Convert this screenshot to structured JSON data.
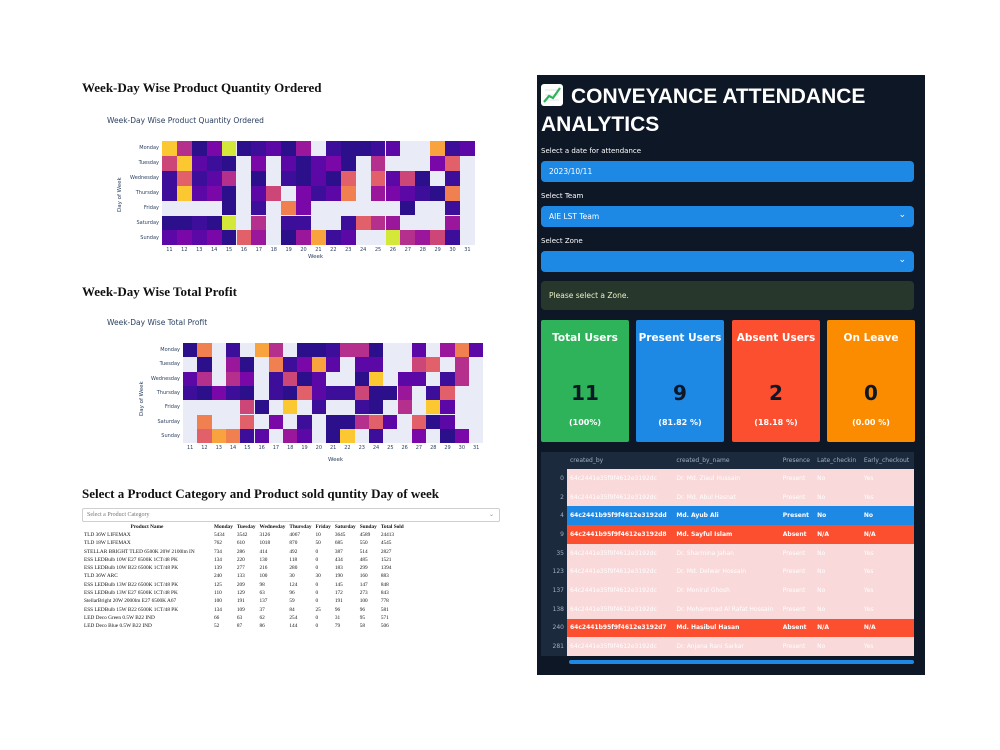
{
  "left": {
    "heatmap1": {
      "heading": "Week-Day Wise Product Quantity Ordered",
      "title": "Week-Day Wise Product Quantity Ordered",
      "days": [
        "Monday",
        "Tuesday",
        "Wednesday",
        "Thursday",
        "Friday",
        "Saturday",
        "Sunday"
      ],
      "weeks": [
        "11",
        "12",
        "13",
        "14",
        "15",
        "16",
        "17",
        "18",
        "19",
        "20",
        "21",
        "22",
        "23",
        "24",
        "25",
        "26",
        "27",
        "28",
        "29",
        "30",
        "31"
      ],
      "xlabel": "Week",
      "ylabel": "Day of Week"
    },
    "heatmap2": {
      "heading": "Week-Day Wise Total Profit",
      "title": "Week-Day Wise Total Profit",
      "days": [
        "Monday",
        "Tuesday",
        "Wednesday",
        "Thursday",
        "Friday",
        "Saturday",
        "Sunday"
      ],
      "weeks": [
        "11",
        "12",
        "13",
        "14",
        "15",
        "16",
        "17",
        "18",
        "19",
        "20",
        "21",
        "22",
        "23",
        "24",
        "25",
        "26",
        "27",
        "28",
        "29",
        "30",
        "31"
      ],
      "xlabel": "Week",
      "ylabel": "Day of Week"
    },
    "product_section": {
      "heading": "Select a Product Category and Product sold quntity Day of week",
      "select_placeholder": "Select a Product Category",
      "columns": [
        "Product Name",
        "Monday",
        "Tuesday",
        "Wednesday",
        "Thursday",
        "Friday",
        "Saturday",
        "Sunday",
        "Total Sold"
      ],
      "rows": [
        [
          "TLD 36W LIFEMAX",
          "5434",
          "3542",
          "3126",
          "4067",
          "10",
          "3645",
          "4589",
          "24413"
        ],
        [
          "TLD 18W LIFEMAX",
          "762",
          "610",
          "1018",
          "870",
          "50",
          "685",
          "550",
          "4545"
        ],
        [
          "STELLAR BRIGHT TLED 6500K 20W 2100lm IN",
          "734",
          "286",
          "414",
          "492",
          "0",
          "387",
          "514",
          "2827"
        ],
        [
          "ESS LEDBulb 10W E27 6500K 1CT/48 PK",
          "134",
          "220",
          "130",
          "118",
          "0",
          "434",
          "485",
          "1521"
        ],
        [
          "ESS LEDBulb 10W B22 6500K 1CT/48 PK",
          "139",
          "277",
          "216",
          "280",
          "0",
          "183",
          "299",
          "1394"
        ],
        [
          "TLD 36W ARC",
          "240",
          "133",
          "100",
          "30",
          "30",
          "190",
          "160",
          "883"
        ],
        [
          "ESS LEDBulb 13W B22 6500K 1CT/48 PK",
          "125",
          "209",
          "98",
          "124",
          "0",
          "145",
          "147",
          "848"
        ],
        [
          "ESS LEDBulb 13W E27 6500K 1CT/48 PK",
          "110",
          "129",
          "63",
          "96",
          "0",
          "172",
          "273",
          "843"
        ],
        [
          "StellarBright 20W 2000lm E27 6500K A67",
          "100",
          "191",
          "137",
          "59",
          "0",
          "191",
          "100",
          "778"
        ],
        [
          "ESS LEDBulb 15W B22 6500K 1CT/48 PK",
          "134",
          "109",
          "37",
          "84",
          "25",
          "96",
          "96",
          "581"
        ],
        [
          "LED Deco Green 0.5W B22 IND",
          "66",
          "63",
          "62",
          "254",
          "0",
          "31",
          "95",
          "571"
        ],
        [
          "LED Deco Blue 0.5W B22 IND",
          "52",
          "87",
          "86",
          "144",
          "0",
          "79",
          "58",
          "506"
        ]
      ]
    }
  },
  "right": {
    "title": "CONVEYANCE ATTENDANCE ANALYTICS",
    "date_label": "Select a date for attendance",
    "date_value": "2023/10/11",
    "team_label": "Select Team",
    "team_value": "AIE LST Team",
    "zone_label": "Select Zone",
    "zone_value": "",
    "info_message": "Please select a Zone.",
    "cards": [
      {
        "title": "Total Users",
        "value": "11",
        "pct": "(100%)",
        "color": "#2eb35b"
      },
      {
        "title": "Present Users",
        "value": "9",
        "pct": "(81.82 %)",
        "color": "#1e88e5"
      },
      {
        "title": "Absent Users",
        "value": "2",
        "pct": "(18.18 %)",
        "color": "#fc4f30"
      },
      {
        "title": "On Leave",
        "value": "0",
        "pct": "(0.00 %)",
        "color": "#fb8c00"
      }
    ],
    "table": {
      "columns": [
        "created_by",
        "created_by_name",
        "Presence",
        "Late_checkin",
        "Early_checkout"
      ],
      "rows": [
        {
          "idx": "0",
          "style": "pink",
          "cells": [
            "64c2441e35f9f4612e3192dc",
            "Dr. Md. Ziaul Hussain",
            "Present",
            "No",
            "Yes"
          ]
        },
        {
          "idx": "2",
          "style": "pink",
          "cells": [
            "64c2441e35f9f4612e3192dc",
            "Dr. Md. Abul Hasnat",
            "Present",
            "No",
            "Yes"
          ]
        },
        {
          "idx": "4",
          "style": "blue",
          "cells": [
            "64c2441b95f9f4612e3192dd",
            "Md. Ayub Ali",
            "Present",
            "No",
            "No"
          ]
        },
        {
          "idx": "9",
          "style": "red",
          "cells": [
            "64c2441b95f9f4612e3192d8",
            "Md. Sayful Islam",
            "Absent",
            "N/A",
            "N/A"
          ]
        },
        {
          "idx": "35",
          "style": "pink",
          "cells": [
            "64c2441e35f9f4612e3192dc",
            "Dr. Sharmina Jahan",
            "Present",
            "No",
            "Yes"
          ]
        },
        {
          "idx": "123",
          "style": "pink",
          "cells": [
            "64c2441e35f9f4612e3192dc",
            "Dr. Md. Delwar Hossain",
            "Present",
            "No",
            "Yes"
          ]
        },
        {
          "idx": "137",
          "style": "pink",
          "cells": [
            "64c2441e35f9f4612e3192dc",
            "Dr. Monirul Ghosh",
            "Present",
            "No",
            "Yes"
          ]
        },
        {
          "idx": "138",
          "style": "pink",
          "cells": [
            "64c2441e35f9f4612e3192dc",
            "Dr. Mohammad Al Rafat Hossain",
            "Present",
            "No",
            "Yes"
          ]
        },
        {
          "idx": "240",
          "style": "red",
          "cells": [
            "64c2441b95f9f4612e3192d7",
            "Md. Hasibul Hasan",
            "Absent",
            "N/A",
            "N/A"
          ]
        },
        {
          "idx": "281",
          "style": "pink",
          "cells": [
            "64c2441e35f9f4612e3192dc",
            "Dr. Anjana Rani Sarkar",
            "Present",
            "No",
            "Yes"
          ]
        }
      ]
    }
  }
}
